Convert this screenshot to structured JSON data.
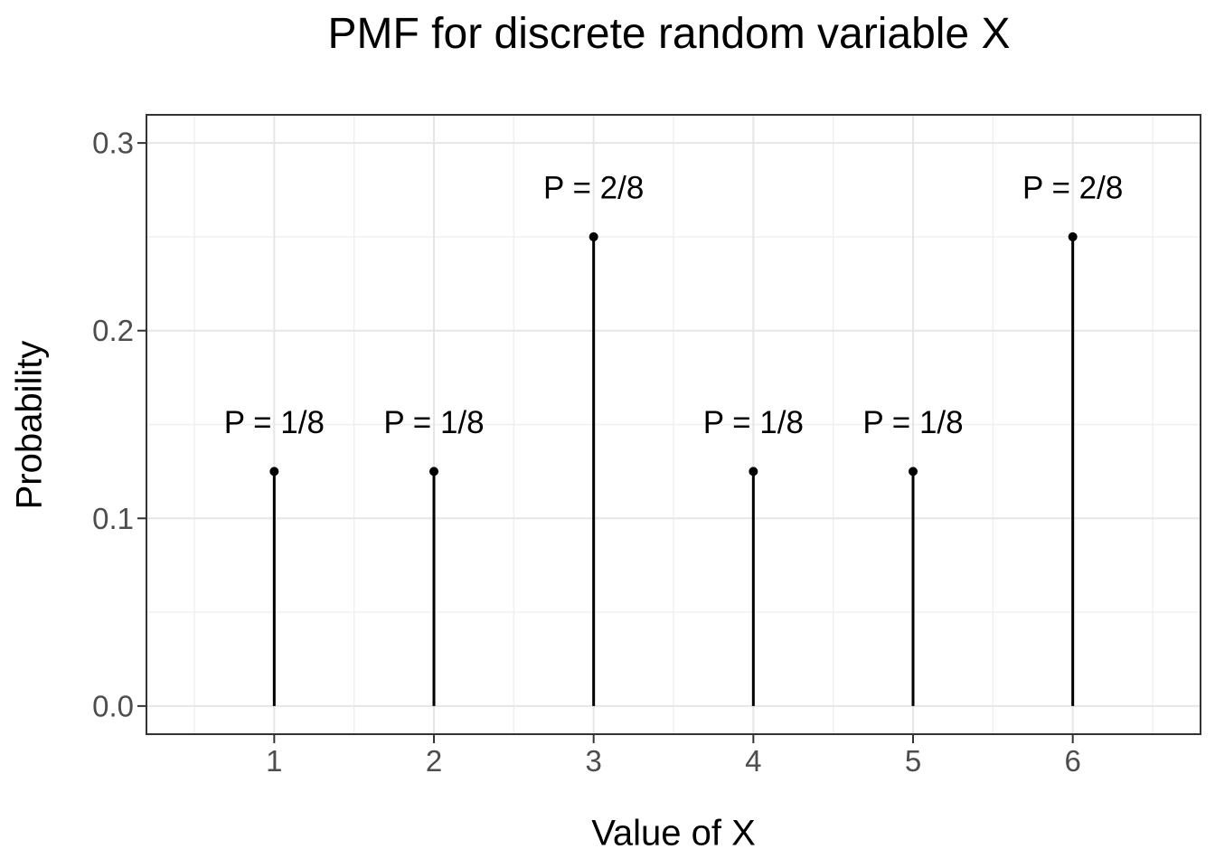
{
  "chart_data": {
    "type": "scatter",
    "mark": "stem-lollipop",
    "title": "PMF for discrete random variable X",
    "xlabel": "Value of X",
    "ylabel": "Probability",
    "x": [
      1,
      2,
      3,
      4,
      5,
      6
    ],
    "y": [
      0.125,
      0.125,
      0.25,
      0.125,
      0.125,
      0.25
    ],
    "point_labels": [
      "P = 1/8",
      "P = 1/8",
      "P = 2/8",
      "P = 1/8",
      "P = 1/8",
      "P = 2/8"
    ],
    "label_offset_y": 0.026,
    "stem_base": 0,
    "xlim": [
      0.2,
      6.8
    ],
    "ylim": [
      -0.015,
      0.315
    ],
    "x_ticks": [
      1,
      2,
      3,
      4,
      5,
      6
    ],
    "x_tick_labels": [
      "1",
      "2",
      "3",
      "4",
      "5",
      "6"
    ],
    "y_ticks": [
      0.0,
      0.1,
      0.2,
      0.3
    ],
    "y_tick_labels": [
      "0.0",
      "0.1",
      "0.2",
      "0.3"
    ],
    "x_minor_ticks": [
      0.5,
      1.5,
      2.5,
      3.5,
      4.5,
      5.5,
      6.5
    ],
    "y_minor_ticks": [
      0.05,
      0.15,
      0.25
    ],
    "grid": "major-and-minor",
    "legend": "none"
  },
  "colors": {
    "background": "#FFFFFF",
    "panel_background": "#FFFFFF",
    "panel_border": "#333333",
    "grid_major": "#E6E6E6",
    "grid_minor": "#EFEFEF",
    "stem": "#000000",
    "point": "#000000",
    "annotation_text": "#000000",
    "axis_tick": "#333333",
    "axis_tick_text": "#4D4D4D",
    "title_text": "#000000"
  }
}
